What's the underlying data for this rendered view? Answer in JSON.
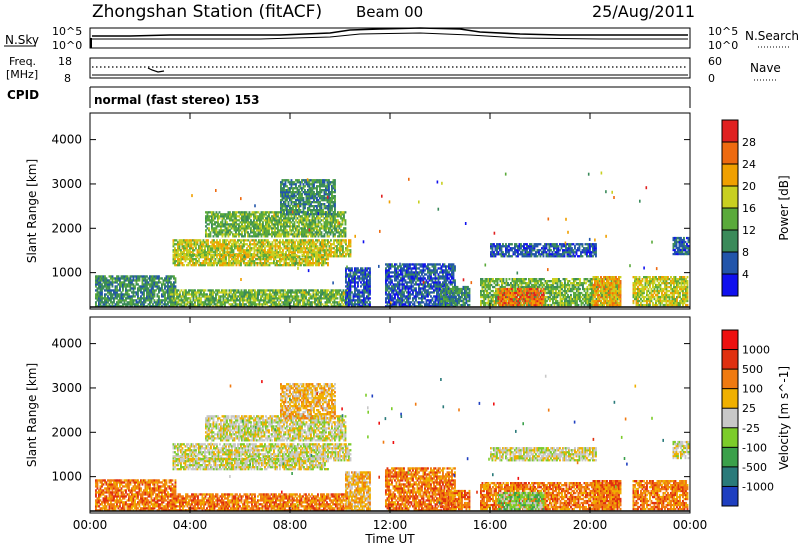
{
  "header": {
    "station": "Zhongshan Station (fitACF)",
    "beam": "Beam 00",
    "date": "25/Aug/2011"
  },
  "top_panels": {
    "sky": {
      "left_label": "N.Sky",
      "right_label": "N.Search",
      "tick_labels": [
        "10^5",
        "10^0"
      ]
    },
    "freq": {
      "left_label_line1": "Freq.",
      "left_label_line2": "[MHz]",
      "left_ticks": [
        "18",
        "8"
      ],
      "right_label": "Nave",
      "right_ticks": [
        "60",
        "0"
      ]
    },
    "cpid": {
      "label": "CPID",
      "value": "normal (fast stereo) 153"
    }
  },
  "chart_data": [
    {
      "type": "heatmap",
      "title": "",
      "ylabel": "Slant Range [km]",
      "xlabel": "Time UT",
      "ylim": [
        180,
        4600
      ],
      "xlim": [
        0,
        24
      ],
      "x_tick_labels": [
        "00:00",
        "04:00",
        "08:00",
        "12:00",
        "16:00",
        "20:00",
        "00:00"
      ],
      "y_tick_labels": [
        "1000",
        "2000",
        "3000",
        "4000"
      ],
      "colorbar": {
        "label": "Power [dB]",
        "ticks": [
          "4",
          "8",
          "12",
          "16",
          "20",
          "24",
          "28"
        ],
        "colors": [
          "#1010ee",
          "#2255aa",
          "#3a8a5a",
          "#5aaa3a",
          "#c8d020",
          "#f0a000",
          "#ee6a10",
          "#e02020"
        ],
        "range": [
          0,
          32
        ]
      },
      "regions": [
        {
          "t0": 0.2,
          "t1": 3.4,
          "r0": 220,
          "r1": 900,
          "level": 2
        },
        {
          "t0": 3.2,
          "t1": 10.3,
          "r0": 220,
          "r1": 600,
          "level": 3
        },
        {
          "t0": 3.3,
          "t1": 10.4,
          "r0": 1350,
          "r1": 1750,
          "level": 4
        },
        {
          "t0": 3.3,
          "t1": 9.5,
          "r0": 1150,
          "r1": 1400,
          "level": 4
        },
        {
          "t0": 4.6,
          "t1": 10.2,
          "r0": 1800,
          "r1": 2350,
          "level": 3
        },
        {
          "t0": 7.6,
          "t1": 9.8,
          "r0": 2300,
          "r1": 3100,
          "level": 2
        },
        {
          "t0": 10.2,
          "t1": 11.2,
          "r0": 220,
          "r1": 1100,
          "level": 1
        },
        {
          "t0": 11.8,
          "t1": 14.6,
          "r0": 220,
          "r1": 1200,
          "level": 1
        },
        {
          "t0": 14.0,
          "t1": 15.2,
          "r0": 250,
          "r1": 700,
          "level": 2
        },
        {
          "t0": 15.6,
          "t1": 21.2,
          "r0": 250,
          "r1": 850,
          "level": 3
        },
        {
          "t0": 16.0,
          "t1": 20.2,
          "r0": 1350,
          "r1": 1650,
          "level": 1
        },
        {
          "t0": 16.3,
          "t1": 18.1,
          "r0": 250,
          "r1": 650,
          "level": 6
        },
        {
          "t0": 20.1,
          "t1": 21.2,
          "r0": 250,
          "r1": 900,
          "level": 5
        },
        {
          "t0": 21.7,
          "t1": 23.9,
          "r0": 250,
          "r1": 900,
          "level": 4
        },
        {
          "t0": 23.3,
          "t1": 23.9,
          "r0": 1400,
          "r1": 1800,
          "level": 1
        }
      ]
    },
    {
      "type": "heatmap",
      "title": "",
      "ylabel": "Slant Range [km]",
      "xlabel": "Time UT",
      "ylim": [
        180,
        4600
      ],
      "xlim": [
        0,
        24
      ],
      "x_tick_labels": [
        "00:00",
        "04:00",
        "08:00",
        "12:00",
        "16:00",
        "20:00",
        "00:00"
      ],
      "y_tick_labels": [
        "1000",
        "2000",
        "3000",
        "4000"
      ],
      "colorbar": {
        "label": "Velocity [m s^-1]",
        "ticks": [
          "1000",
          "500",
          "100",
          "25",
          "-25",
          "-100",
          "-500",
          "-1000"
        ],
        "colors": [
          "#1f3fc0",
          "#2a7a7a",
          "#3aa04a",
          "#7ccc2a",
          "#c8c8c8",
          "#f0b000",
          "#f07a10",
          "#e03010",
          "#ee1010"
        ],
        "range": [
          -1000,
          1000
        ]
      },
      "regions": [
        {
          "t0": 0.2,
          "t1": 3.4,
          "r0": 220,
          "r1": 900,
          "level": 6
        },
        {
          "t0": 3.2,
          "t1": 10.3,
          "r0": 220,
          "r1": 600,
          "level": 6
        },
        {
          "t0": 3.3,
          "t1": 10.4,
          "r0": 1350,
          "r1": 1750,
          "level": 4
        },
        {
          "t0": 3.3,
          "t1": 9.5,
          "r0": 1150,
          "r1": 1400,
          "level": 4
        },
        {
          "t0": 4.6,
          "t1": 10.2,
          "r0": 1800,
          "r1": 2350,
          "level": 4
        },
        {
          "t0": 7.6,
          "t1": 9.8,
          "r0": 2300,
          "r1": 3100,
          "level": 5
        },
        {
          "t0": 10.2,
          "t1": 11.2,
          "r0": 220,
          "r1": 1100,
          "level": 5
        },
        {
          "t0": 11.8,
          "t1": 14.6,
          "r0": 220,
          "r1": 1200,
          "level": 6
        },
        {
          "t0": 14.0,
          "t1": 15.2,
          "r0": 250,
          "r1": 700,
          "level": 6
        },
        {
          "t0": 15.6,
          "t1": 21.2,
          "r0": 250,
          "r1": 850,
          "level": 6
        },
        {
          "t0": 16.0,
          "t1": 20.2,
          "r0": 1350,
          "r1": 1650,
          "level": 4
        },
        {
          "t0": 16.3,
          "t1": 18.1,
          "r0": 250,
          "r1": 650,
          "level": 3
        },
        {
          "t0": 20.1,
          "t1": 21.2,
          "r0": 250,
          "r1": 900,
          "level": 6
        },
        {
          "t0": 21.7,
          "t1": 23.9,
          "r0": 250,
          "r1": 900,
          "level": 6
        },
        {
          "t0": 23.3,
          "t1": 23.9,
          "r0": 1400,
          "r1": 1800,
          "level": 4
        }
      ]
    }
  ]
}
